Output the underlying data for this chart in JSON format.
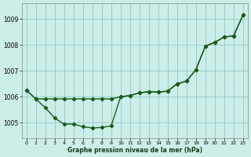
{
  "xlabel": "Graphe pression niveau de la mer (hPa)",
  "background_color": "#cceee8",
  "grid_color": "#99cccc",
  "line_color": "#1a5c1a",
  "ylim": [
    1004.4,
    1009.6
  ],
  "yticks": [
    1005,
    1006,
    1007,
    1008,
    1009
  ],
  "x_ticks": [
    0,
    1,
    2,
    3,
    4,
    5,
    6,
    7,
    8,
    9,
    10,
    11,
    12,
    13,
    14,
    15,
    16,
    17,
    18,
    19,
    20,
    21,
    22,
    23
  ],
  "upper_x": [
    0,
    1,
    2,
    3,
    4,
    5,
    6,
    7,
    8,
    9,
    10,
    11,
    12,
    13,
    14,
    15,
    16,
    17,
    18,
    19,
    20,
    21,
    22,
    23
  ],
  "upper_y": [
    1006.25,
    1005.92,
    1005.92,
    1005.92,
    1005.92,
    1005.92,
    1005.92,
    1005.92,
    1005.92,
    1005.92,
    1006.0,
    1006.05,
    1006.15,
    1006.2,
    1006.18,
    1006.22,
    1006.5,
    1006.6,
    1007.05,
    1007.95,
    1008.1,
    1008.3,
    1008.35,
    1009.15
  ],
  "lower_x": [
    0,
    1,
    2,
    3,
    4,
    5,
    6,
    7,
    8,
    9,
    10,
    11,
    12,
    13,
    14,
    15,
    16,
    17,
    18,
    19,
    20,
    21,
    22,
    23
  ],
  "lower_y": [
    1006.25,
    1005.92,
    1005.58,
    1005.18,
    1004.95,
    1004.95,
    1004.85,
    1004.8,
    1004.82,
    1004.88,
    1006.0,
    1006.05,
    1006.15,
    1006.2,
    1006.18,
    1006.22,
    1006.5,
    1006.6,
    1007.05,
    1007.95,
    1008.1,
    1008.3,
    1008.35,
    1009.15
  ]
}
